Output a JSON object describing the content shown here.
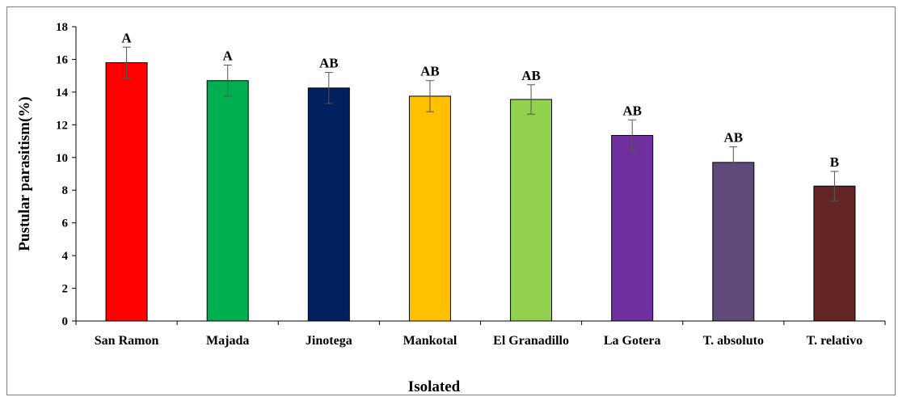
{
  "chart_data": {
    "type": "bar",
    "title": "",
    "xlabel": "Isolated",
    "ylabel": "Pustular parasitism(%)",
    "ylim": [
      0,
      18
    ],
    "yticks": [
      0,
      2,
      4,
      6,
      8,
      10,
      12,
      14,
      16,
      18
    ],
    "grid": false,
    "categories": [
      "San Ramon",
      "Majada",
      "Jinotega",
      "Mankotal",
      "El Granadillo",
      "La Gotera",
      "T. absoluto",
      "T. relativo"
    ],
    "values": [
      15.8,
      14.7,
      14.25,
      13.75,
      13.55,
      11.35,
      9.7,
      8.25
    ],
    "errors": [
      0.95,
      0.95,
      0.95,
      0.95,
      0.9,
      0.95,
      0.95,
      0.9
    ],
    "significance_labels": [
      "A",
      "A",
      "AB",
      "AB",
      "AB",
      "AB",
      "AB",
      "B"
    ],
    "colors": [
      "#ff0000",
      "#00b050",
      "#002060",
      "#ffc000",
      "#92d050",
      "#7030a0",
      "#604a7b",
      "#632523"
    ]
  }
}
